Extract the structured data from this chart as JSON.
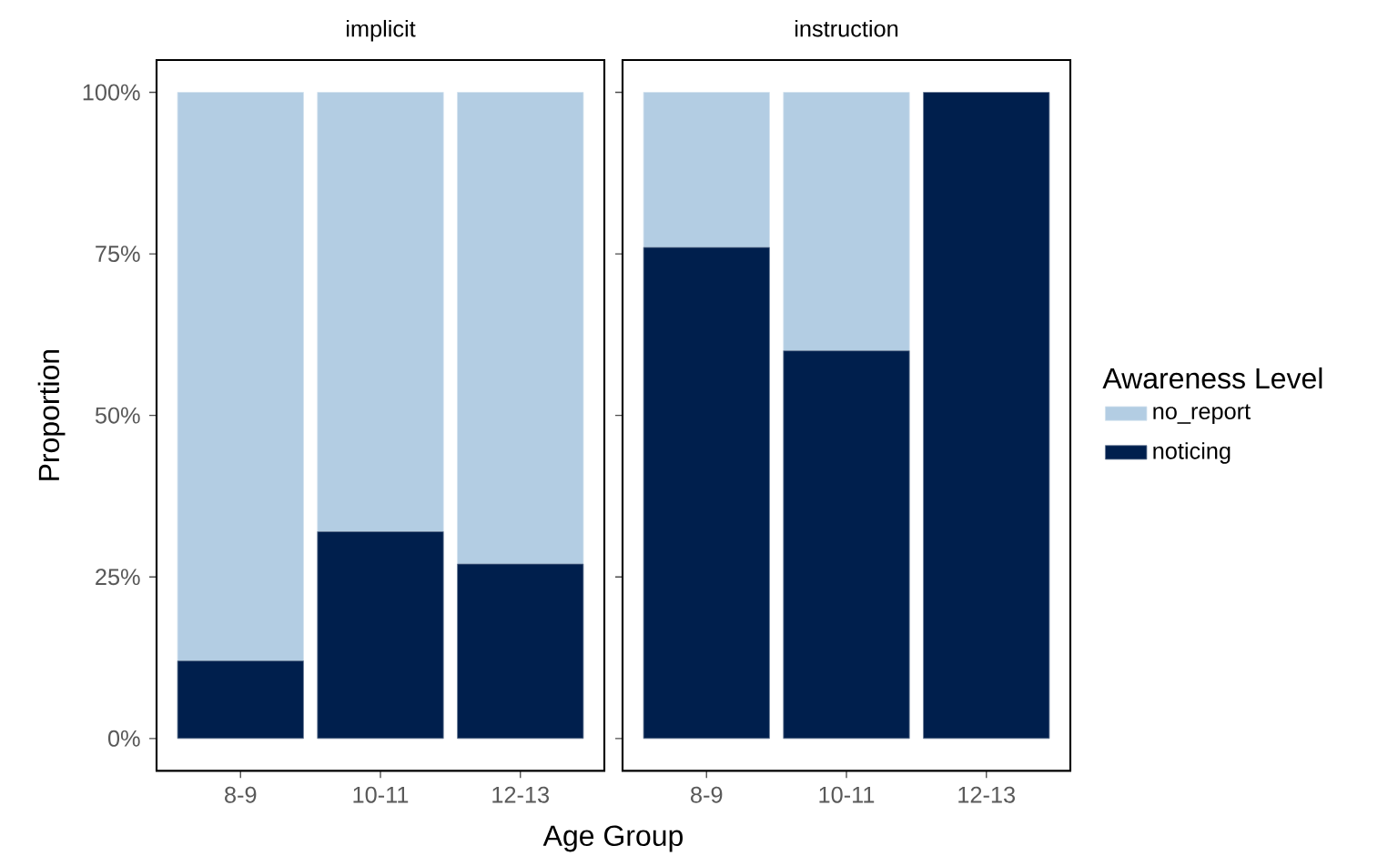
{
  "chart_data": [
    {
      "type": "bar",
      "title": "implicit",
      "stacked": true,
      "xlabel": "Age Group",
      "ylabel": "Proportion",
      "categories": [
        "8-9",
        "10-11",
        "12-13"
      ],
      "series": [
        {
          "color": "#001f4d",
          "values": [
            12,
            32,
            27
          ]
        },
        {
          "color": "#b3cde3",
          "values": [
            88,
            68,
            73
          ]
        }
      ],
      "ylim": [
        -5,
        105
      ],
      "yticks": [
        {
          "value": 0,
          "label": "0%"
        },
        {
          "value": 25,
          "label": "25%"
        },
        {
          "value": 50,
          "label": "50%"
        },
        {
          "value": 75,
          "label": "75%"
        },
        {
          "value": 100,
          "label": "100%"
        }
      ]
    },
    {
      "type": "bar",
      "title": "instruction",
      "stacked": true,
      "categories": [
        "8-9",
        "10-11",
        "12-13"
      ],
      "legend": "right",
      "legend_title": "Awareness Level",
      "series": [
        {
          "name": "noticing",
          "color": "#001f4d",
          "values": [
            76,
            60,
            100
          ]
        },
        {
          "name": "no_report",
          "color": "#b3cde3",
          "values": [
            24,
            40,
            0
          ]
        }
      ],
      "ylim": [
        -5,
        105
      ],
      "yticks": [
        {
          "value": 0,
          "label": null
        },
        {
          "value": 25,
          "label": null
        },
        {
          "value": 50,
          "label": null
        },
        {
          "value": 75,
          "label": null
        },
        {
          "value": 100,
          "label": null
        }
      ],
      "tick_labels": "x"
    }
  ]
}
